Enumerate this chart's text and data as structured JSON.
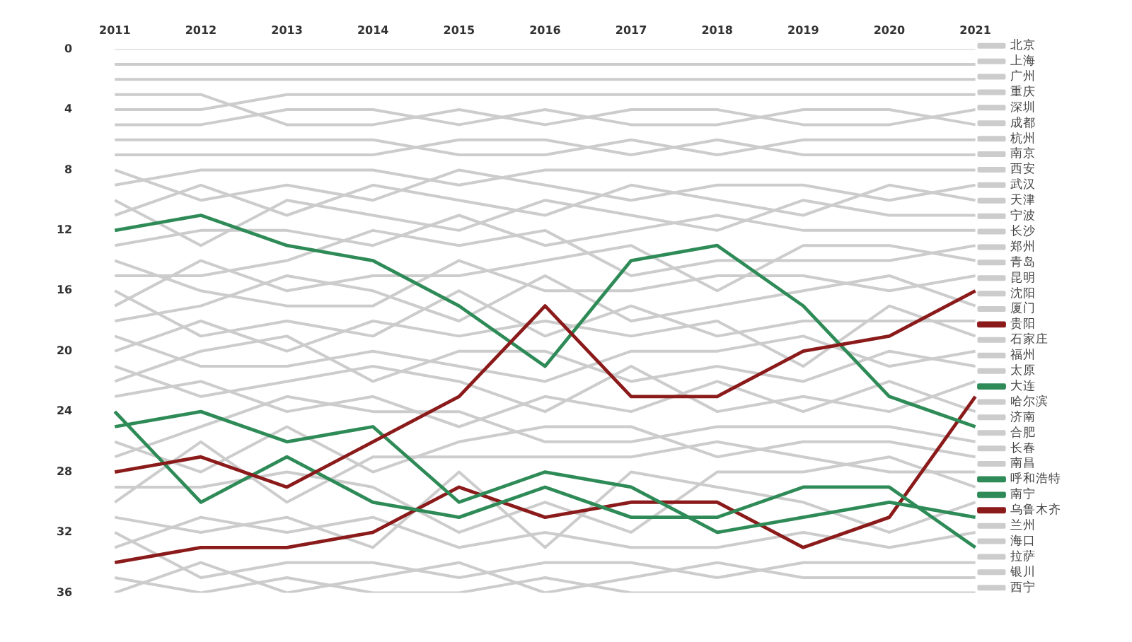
{
  "chart_data": {
    "type": "line",
    "categories": [
      "2011",
      "2012",
      "2013",
      "2014",
      "2015",
      "2016",
      "2017",
      "2018",
      "2019",
      "2020",
      "2021"
    ],
    "ylim": [
      36,
      0
    ],
    "yticks": [
      0,
      4,
      8,
      12,
      16,
      20,
      24,
      28,
      32,
      36
    ],
    "grid": false,
    "legend": "right",
    "marker": "none",
    "line_style": "solid",
    "series": [
      {
        "name": "北京",
        "color": "#cccccc",
        "values": [
          1,
          1,
          1,
          1,
          1,
          1,
          1,
          1,
          1,
          1,
          1
        ]
      },
      {
        "name": "上海",
        "color": "#cccccc",
        "values": [
          2,
          2,
          2,
          2,
          2,
          2,
          2,
          2,
          2,
          2,
          2
        ]
      },
      {
        "name": "广州",
        "color": "#cccccc",
        "values": [
          4,
          4,
          3,
          3,
          3,
          3,
          3,
          3,
          3,
          3,
          3
        ]
      },
      {
        "name": "重庆",
        "color": "#cccccc",
        "values": [
          3,
          3,
          5,
          5,
          4,
          5,
          4,
          4,
          5,
          5,
          4
        ]
      },
      {
        "name": "深圳",
        "color": "#cccccc",
        "values": [
          5,
          5,
          4,
          4,
          5,
          4,
          5,
          5,
          4,
          4,
          5
        ]
      },
      {
        "name": "成都",
        "color": "#cccccc",
        "values": [
          6,
          6,
          6,
          6,
          7,
          7,
          6,
          7,
          6,
          6,
          6
        ]
      },
      {
        "name": "杭州",
        "color": "#cccccc",
        "values": [
          7,
          7,
          7,
          7,
          6,
          6,
          7,
          6,
          7,
          7,
          7
        ]
      },
      {
        "name": "南京",
        "color": "#cccccc",
        "values": [
          9,
          8,
          8,
          8,
          9,
          8,
          8,
          8,
          8,
          8,
          8
        ]
      },
      {
        "name": "西安",
        "color": "#cccccc",
        "values": [
          8,
          10,
          9,
          10,
          8,
          9,
          10,
          9,
          9,
          10,
          9
        ]
      },
      {
        "name": "武汉",
        "color": "#cccccc",
        "values": [
          11,
          9,
          11,
          9,
          10,
          11,
          9,
          10,
          11,
          9,
          10
        ]
      },
      {
        "name": "天津",
        "color": "#cccccc",
        "values": [
          10,
          13,
          10,
          11,
          12,
          10,
          11,
          12,
          10,
          11,
          11
        ]
      },
      {
        "name": "宁波",
        "color": "#cccccc",
        "values": [
          13,
          12,
          12,
          13,
          11,
          13,
          12,
          11,
          12,
          12,
          12
        ]
      },
      {
        "name": "长沙",
        "color": "#cccccc",
        "values": [
          15,
          15,
          14,
          12,
          13,
          12,
          15,
          14,
          14,
          14,
          13
        ]
      },
      {
        "name": "郑州",
        "color": "#cccccc",
        "values": [
          17,
          14,
          16,
          15,
          15,
          14,
          13,
          16,
          13,
          13,
          14
        ]
      },
      {
        "name": "青岛",
        "color": "#cccccc",
        "values": [
          14,
          16,
          17,
          17,
          14,
          16,
          16,
          15,
          15,
          16,
          15
        ]
      },
      {
        "name": "昆明",
        "color": "#cccccc",
        "values": [
          18,
          17,
          15,
          16,
          18,
          15,
          18,
          17,
          16,
          15,
          17
        ]
      },
      {
        "name": "沈阳",
        "color": "#cccccc",
        "values": [
          16,
          19,
          18,
          19,
          16,
          19,
          17,
          19,
          18,
          18,
          18
        ]
      },
      {
        "name": "厦门",
        "color": "#cccccc",
        "values": [
          20,
          18,
          20,
          18,
          19,
          18,
          19,
          18,
          21,
          17,
          19
        ]
      },
      {
        "name": "贵阳",
        "color": "#8b1a1a",
        "values": [
          28,
          27,
          29,
          26,
          23,
          17,
          23,
          23,
          20,
          19,
          16
        ]
      },
      {
        "name": "石家庄",
        "color": "#cccccc",
        "values": [
          19,
          21,
          21,
          20,
          21,
          22,
          20,
          20,
          19,
          21,
          20
        ]
      },
      {
        "name": "福州",
        "color": "#cccccc",
        "values": [
          22,
          20,
          19,
          22,
          20,
          20,
          22,
          21,
          22,
          20,
          21
        ]
      },
      {
        "name": "太原",
        "color": "#cccccc",
        "values": [
          21,
          23,
          22,
          21,
          22,
          24,
          21,
          24,
          23,
          24,
          22
        ]
      },
      {
        "name": "大连",
        "color": "#2e8b57",
        "values": [
          12,
          11,
          13,
          14,
          17,
          21,
          14,
          13,
          17,
          23,
          25
        ]
      },
      {
        "name": "哈尔滨",
        "color": "#cccccc",
        "values": [
          23,
          22,
          24,
          23,
          25,
          23,
          24,
          22,
          24,
          22,
          24
        ]
      },
      {
        "name": "济南",
        "color": "#cccccc",
        "values": [
          27,
          25,
          23,
          24,
          24,
          26,
          26,
          25,
          25,
          25,
          26
        ]
      },
      {
        "name": "合肥",
        "color": "#cccccc",
        "values": [
          26,
          28,
          25,
          28,
          26,
          25,
          25,
          27,
          26,
          26,
          27
        ]
      },
      {
        "name": "长春",
        "color": "#cccccc",
        "values": [
          30,
          26,
          30,
          27,
          27,
          27,
          27,
          26,
          27,
          28,
          28
        ]
      },
      {
        "name": "南昌",
        "color": "#cccccc",
        "values": [
          29,
          29,
          28,
          29,
          32,
          30,
          32,
          28,
          28,
          27,
          29
        ]
      },
      {
        "name": "呼和浩特",
        "color": "#2e8b57",
        "values": [
          25,
          24,
          26,
          25,
          30,
          28,
          29,
          32,
          31,
          30,
          31
        ]
      },
      {
        "name": "南宁",
        "color": "#2e8b57",
        "values": [
          24,
          30,
          27,
          30,
          31,
          29,
          31,
          31,
          29,
          29,
          33
        ]
      },
      {
        "name": "乌鲁木齐",
        "color": "#8b1a1a",
        "values": [
          34,
          33,
          33,
          32,
          29,
          31,
          30,
          30,
          33,
          31,
          23
        ]
      },
      {
        "name": "兰州",
        "color": "#cccccc",
        "values": [
          31,
          32,
          31,
          33,
          28,
          33,
          28,
          29,
          30,
          32,
          30
        ]
      },
      {
        "name": "海口",
        "color": "#cccccc",
        "values": [
          33,
          31,
          32,
          31,
          33,
          32,
          33,
          33,
          32,
          33,
          32
        ]
      },
      {
        "name": "拉萨",
        "color": "#cccccc",
        "values": [
          32,
          35,
          34,
          34,
          35,
          34,
          34,
          35,
          34,
          34,
          34
        ]
      },
      {
        "name": "银川",
        "color": "#cccccc",
        "values": [
          36,
          34,
          36,
          35,
          34,
          36,
          35,
          34,
          35,
          35,
          35
        ]
      },
      {
        "name": "西宁",
        "color": "#cccccc",
        "values": [
          35,
          36,
          35,
          36,
          36,
          35,
          36,
          36,
          36,
          36,
          36
        ]
      }
    ]
  }
}
